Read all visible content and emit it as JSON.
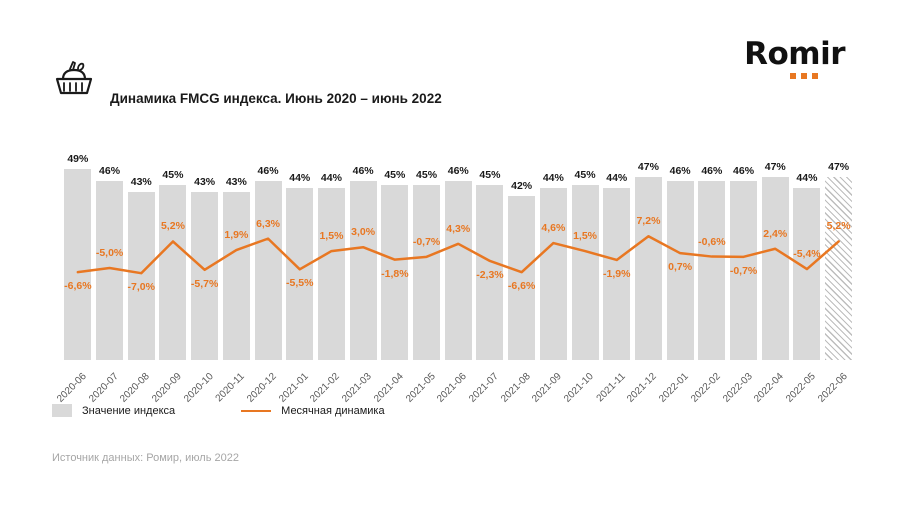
{
  "header": {
    "title": "Динамика FMCG индекса. Июнь 2020 – июнь 2022",
    "logo_text": "Romir"
  },
  "legend": {
    "index_label": "Значение индекса",
    "dynamics_label": "Месячная динамика"
  },
  "source": "Источник данных: Ромир, июль 2022",
  "chart_data": {
    "type": "bar",
    "title": "Динамика FMCG индекса. Июнь 2020 – июнь 2022",
    "xlabel": "",
    "ylabel": "",
    "grid": false,
    "legend_position": "bottom-left",
    "bar_axis_range": [
      0,
      52
    ],
    "line_axis_range": [
      -10,
      10
    ],
    "last_bar_hatched": true,
    "colors": {
      "bar": "#d9d9d9",
      "line": "#E87722",
      "bar_label": "#1a1a1a",
      "line_label": "#E87722"
    },
    "categories": [
      "2020-06",
      "2020-07",
      "2020-08",
      "2020-09",
      "2020-10",
      "2020-11",
      "2020-12",
      "2021-01",
      "2021-02",
      "2021-03",
      "2021-04",
      "2021-05",
      "2021-06",
      "2021-07",
      "2021-08",
      "2021-09",
      "2021-10",
      "2021-11",
      "2021-12",
      "2022-01",
      "2022-02",
      "2022-03",
      "2022-04",
      "2022-05",
      "2022-06"
    ],
    "series": [
      {
        "name": "Значение индекса",
        "type": "bar",
        "values": [
          49,
          46,
          43,
          45,
          43,
          43,
          46,
          44,
          44,
          46,
          45,
          45,
          46,
          45,
          42,
          44,
          45,
          44,
          47,
          46,
          46,
          46,
          47,
          44,
          47
        ],
        "labels": [
          "49%",
          "46%",
          "43%",
          "45%",
          "43%",
          "43%",
          "46%",
          "44%",
          "44%",
          "46%",
          "45%",
          "45%",
          "46%",
          "45%",
          "42%",
          "44%",
          "45%",
          "44%",
          "47%",
          "46%",
          "46%",
          "46%",
          "47%",
          "44%",
          "47%"
        ]
      },
      {
        "name": "Месячная динамика",
        "type": "line",
        "values": [
          -6.6,
          -5.0,
          -7.0,
          5.2,
          -5.7,
          1.9,
          6.3,
          -5.5,
          1.5,
          3.0,
          -1.8,
          -0.7,
          4.3,
          -2.3,
          -6.6,
          4.6,
          1.5,
          -1.9,
          7.2,
          0.7,
          -0.6,
          -0.7,
          2.4,
          -5.4,
          5.2
        ],
        "labels": [
          "-6,6%",
          "-5,0%",
          "-7,0%",
          "5,2%",
          "-5,7%",
          "1,9%",
          "6,3%",
          "-5,5%",
          "1,5%",
          "3,0%",
          "-1,8%",
          "-0,7%",
          "4,3%",
          "-2,3%",
          "-6,6%",
          "4,6%",
          "1,5%",
          "-1,9%",
          "7,2%",
          "0,7%",
          "-0,6%",
          "-0,7%",
          "2,4%",
          "-5,4%",
          "5,2%"
        ],
        "label_side": [
          "below",
          "above",
          "below",
          "above",
          "below",
          "above",
          "above",
          "below",
          "above",
          "above",
          "below",
          "above",
          "above",
          "below",
          "below",
          "above",
          "above",
          "below",
          "above",
          "below",
          "above",
          "below",
          "above",
          "above",
          "above"
        ]
      }
    ]
  }
}
